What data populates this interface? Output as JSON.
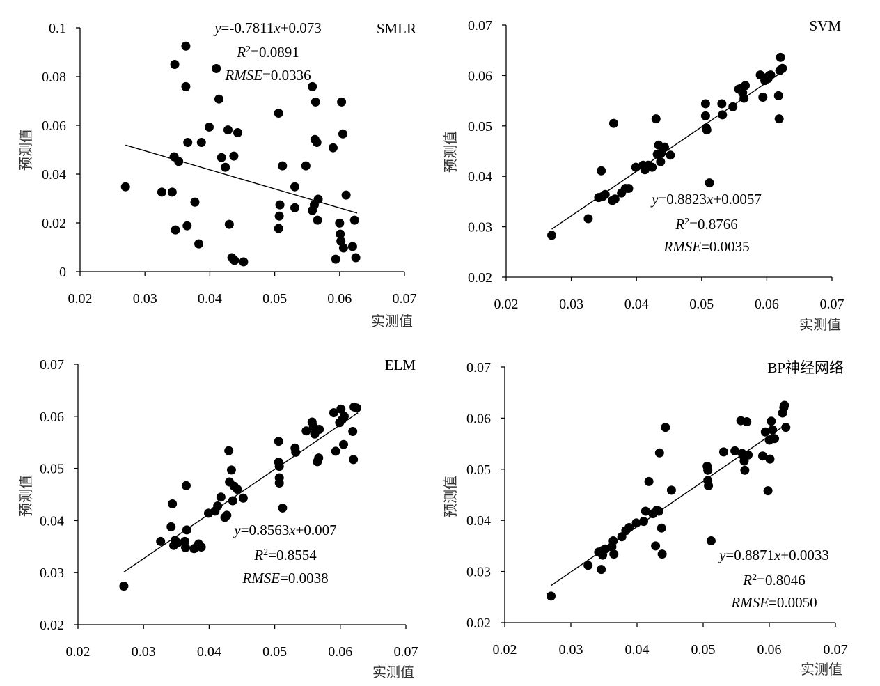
{
  "chart_data": [
    {
      "type": "scatter",
      "title": "SMLR",
      "xlabel": "实测值",
      "ylabel": "预测值",
      "xlim": [
        0.02,
        0.07
      ],
      "ylim": [
        0,
        0.1
      ],
      "xticks": [
        "0.02",
        "0.03",
        "0.04",
        "0.05",
        "0.06",
        "0.07"
      ],
      "yticks": [
        "0",
        "0.02",
        "0.04",
        "0.06",
        "0.08",
        "0.1"
      ],
      "equation": "y =-0.7811x +0.073",
      "r2": "R 2=0.0891",
      "rmse": "RMSE =0.0336",
      "fit": {
        "slope": -0.7811,
        "intercept": 0.073,
        "x_range": [
          0.027,
          0.0627
        ]
      },
      "points": [
        [
          0.027,
          0.0348
        ],
        [
          0.0326,
          0.0326
        ],
        [
          0.0342,
          0.0326
        ],
        [
          0.0345,
          0.0471
        ],
        [
          0.0347,
          0.0171
        ],
        [
          0.0346,
          0.085
        ],
        [
          0.0352,
          0.0452
        ],
        [
          0.0363,
          0.0759
        ],
        [
          0.0363,
          0.0925
        ],
        [
          0.0365,
          0.0188
        ],
        [
          0.0366,
          0.053
        ],
        [
          0.0377,
          0.0285
        ],
        [
          0.0383,
          0.0114
        ],
        [
          0.0387,
          0.053
        ],
        [
          0.0399,
          0.0593
        ],
        [
          0.041,
          0.0833
        ],
        [
          0.0414,
          0.0708
        ],
        [
          0.0418,
          0.0468
        ],
        [
          0.0424,
          0.0428
        ],
        [
          0.0428,
          0.0581
        ],
        [
          0.043,
          0.0194
        ],
        [
          0.0434,
          0.0057
        ],
        [
          0.0437,
          0.0474
        ],
        [
          0.0438,
          0.0046
        ],
        [
          0.0443,
          0.057
        ],
        [
          0.0452,
          0.004
        ],
        [
          0.0506,
          0.065
        ],
        [
          0.0506,
          0.0177
        ],
        [
          0.0507,
          0.0228
        ],
        [
          0.0508,
          0.0274
        ],
        [
          0.0512,
          0.0434
        ],
        [
          0.0531,
          0.0348
        ],
        [
          0.0531,
          0.0262
        ],
        [
          0.0548,
          0.0434
        ],
        [
          0.0558,
          0.0759
        ],
        [
          0.0558,
          0.0251
        ],
        [
          0.0561,
          0.0274
        ],
        [
          0.0562,
          0.0542
        ],
        [
          0.0563,
          0.0696
        ],
        [
          0.0565,
          0.053
        ],
        [
          0.0566,
          0.0211
        ],
        [
          0.0567,
          0.0297
        ],
        [
          0.059,
          0.0508
        ],
        [
          0.0594,
          0.0051
        ],
        [
          0.06,
          0.0199
        ],
        [
          0.0601,
          0.0154
        ],
        [
          0.0602,
          0.0125
        ],
        [
          0.0603,
          0.0696
        ],
        [
          0.0605,
          0.0565
        ],
        [
          0.0606,
          0.0097
        ],
        [
          0.061,
          0.0314
        ],
        [
          0.062,
          0.0103
        ],
        [
          0.0623,
          0.0211
        ],
        [
          0.0625,
          0.0057
        ]
      ]
    },
    {
      "type": "scatter",
      "title": "SVM",
      "xlabel": "实测值",
      "ylabel": "预测值",
      "xlim": [
        0.02,
        0.07
      ],
      "ylim": [
        0.02,
        0.07
      ],
      "xticks": [
        "0.02",
        "0.03",
        "0.04",
        "0.05",
        "0.06",
        "0.07"
      ],
      "yticks": [
        "0.02",
        "0.03",
        "0.04",
        "0.05",
        "0.06",
        "0.07"
      ],
      "equation": "y =0.8823x +0.0057",
      "r2": "R 2=0.8766",
      "rmse": "RMSE =0.0035",
      "fit": {
        "slope": 0.8823,
        "intercept": 0.0057,
        "x_range": [
          0.027,
          0.0627
        ]
      },
      "points": [
        [
          0.027,
          0.0283
        ],
        [
          0.0326,
          0.0316
        ],
        [
          0.0342,
          0.0358
        ],
        [
          0.0346,
          0.0411
        ],
        [
          0.0348,
          0.036
        ],
        [
          0.0352,
          0.0364
        ],
        [
          0.0363,
          0.0352
        ],
        [
          0.0365,
          0.0505
        ],
        [
          0.0367,
          0.0355
        ],
        [
          0.0377,
          0.0367
        ],
        [
          0.0383,
          0.0376
        ],
        [
          0.0388,
          0.0376
        ],
        [
          0.0399,
          0.0418
        ],
        [
          0.041,
          0.0422
        ],
        [
          0.0413,
          0.0413
        ],
        [
          0.0418,
          0.0422
        ],
        [
          0.0424,
          0.0418
        ],
        [
          0.043,
          0.0514
        ],
        [
          0.0432,
          0.0444
        ],
        [
          0.0434,
          0.0462
        ],
        [
          0.0437,
          0.0429
        ],
        [
          0.0438,
          0.0446
        ],
        [
          0.0443,
          0.0458
        ],
        [
          0.0452,
          0.0442
        ],
        [
          0.0506,
          0.0544
        ],
        [
          0.0506,
          0.052
        ],
        [
          0.0507,
          0.0496
        ],
        [
          0.0508,
          0.0492
        ],
        [
          0.0512,
          0.0387
        ],
        [
          0.0531,
          0.0544
        ],
        [
          0.0532,
          0.0522
        ],
        [
          0.0548,
          0.0538
        ],
        [
          0.0557,
          0.0573
        ],
        [
          0.0561,
          0.0575
        ],
        [
          0.0563,
          0.0566
        ],
        [
          0.0565,
          0.0555
        ],
        [
          0.0567,
          0.058
        ],
        [
          0.059,
          0.0601
        ],
        [
          0.0594,
          0.0557
        ],
        [
          0.0597,
          0.059
        ],
        [
          0.06,
          0.0596
        ],
        [
          0.0602,
          0.0594
        ],
        [
          0.0604,
          0.06
        ],
        [
          0.0606,
          0.0601
        ],
        [
          0.0618,
          0.056
        ],
        [
          0.0619,
          0.0514
        ],
        [
          0.062,
          0.061
        ],
        [
          0.0621,
          0.0636
        ],
        [
          0.0624,
          0.0614
        ]
      ]
    },
    {
      "type": "scatter",
      "title": "ELM",
      "xlabel": "实测值",
      "ylabel": "预测值",
      "xlim": [
        0.02,
        0.07
      ],
      "ylim": [
        0.02,
        0.07
      ],
      "xticks": [
        "0.02",
        "0.03",
        "0.04",
        "0.05",
        "0.06",
        "0.07"
      ],
      "yticks": [
        "0.02",
        "0.03",
        "0.04",
        "0.05",
        "0.06",
        "0.07"
      ],
      "equation": "y =0.8563x +0.007",
      "r2": "R 2=0.8554",
      "rmse": "RMSE =0.0038",
      "fit": {
        "slope": 0.8563,
        "intercept": 0.007,
        "x_range": [
          0.027,
          0.0627
        ]
      },
      "points": [
        [
          0.027,
          0.0274
        ],
        [
          0.0326,
          0.036
        ],
        [
          0.0342,
          0.0388
        ],
        [
          0.0344,
          0.0432
        ],
        [
          0.0346,
          0.0352
        ],
        [
          0.0348,
          0.0362
        ],
        [
          0.0352,
          0.0357
        ],
        [
          0.0363,
          0.036
        ],
        [
          0.0364,
          0.0348
        ],
        [
          0.0365,
          0.0467
        ],
        [
          0.0366,
          0.0382
        ],
        [
          0.0377,
          0.0346
        ],
        [
          0.0384,
          0.0355
        ],
        [
          0.0388,
          0.0349
        ],
        [
          0.0399,
          0.0414
        ],
        [
          0.0409,
          0.0418
        ],
        [
          0.0413,
          0.0428
        ],
        [
          0.0418,
          0.0445
        ],
        [
          0.0424,
          0.0406
        ],
        [
          0.0427,
          0.041
        ],
        [
          0.043,
          0.0534
        ],
        [
          0.0431,
          0.0474
        ],
        [
          0.0434,
          0.0497
        ],
        [
          0.0436,
          0.0438
        ],
        [
          0.0438,
          0.0466
        ],
        [
          0.0443,
          0.046
        ],
        [
          0.0452,
          0.0443
        ],
        [
          0.0506,
          0.0552
        ],
        [
          0.0506,
          0.0512
        ],
        [
          0.0507,
          0.0504
        ],
        [
          0.0507,
          0.0482
        ],
        [
          0.0507,
          0.0472
        ],
        [
          0.0512,
          0.0424
        ],
        [
          0.0531,
          0.0539
        ],
        [
          0.0532,
          0.0531
        ],
        [
          0.0548,
          0.0572
        ],
        [
          0.0557,
          0.0589
        ],
        [
          0.0559,
          0.058
        ],
        [
          0.0561,
          0.0566
        ],
        [
          0.0563,
          0.0572
        ],
        [
          0.0565,
          0.0513
        ],
        [
          0.0567,
          0.052
        ],
        [
          0.0568,
          0.0575
        ],
        [
          0.059,
          0.0607
        ],
        [
          0.0593,
          0.0533
        ],
        [
          0.0599,
          0.0588
        ],
        [
          0.0601,
          0.0614
        ],
        [
          0.0603,
          0.0594
        ],
        [
          0.0605,
          0.0546
        ],
        [
          0.0606,
          0.06
        ],
        [
          0.0619,
          0.0571
        ],
        [
          0.062,
          0.0517
        ],
        [
          0.0621,
          0.0618
        ],
        [
          0.0625,
          0.0616
        ]
      ]
    },
    {
      "type": "scatter",
      "title": "BP神经网络",
      "xlabel": "实测值",
      "ylabel": "预测值",
      "xlim": [
        0.02,
        0.07
      ],
      "ylim": [
        0.02,
        0.07
      ],
      "xticks": [
        "0.02",
        "0.03",
        "0.04",
        "0.05",
        "0.06",
        "0.07"
      ],
      "yticks": [
        "0.02",
        "0.03",
        "0.04",
        "0.05",
        "0.06",
        "0.07"
      ],
      "equation": "y =0.8871x +0.0033",
      "r2": "R 2=0.8046",
      "rmse": "RMSE =0.0050",
      "fit": {
        "slope": 0.8871,
        "intercept": 0.0033,
        "x_range": [
          0.027,
          0.0627
        ]
      },
      "points": [
        [
          0.027,
          0.0252
        ],
        [
          0.0326,
          0.0312
        ],
        [
          0.0342,
          0.0338
        ],
        [
          0.0346,
          0.0304
        ],
        [
          0.0348,
          0.0341
        ],
        [
          0.0348,
          0.0332
        ],
        [
          0.0352,
          0.0344
        ],
        [
          0.0362,
          0.0348
        ],
        [
          0.0364,
          0.036
        ],
        [
          0.0365,
          0.0334
        ],
        [
          0.0377,
          0.0368
        ],
        [
          0.0383,
          0.038
        ],
        [
          0.0388,
          0.0386
        ],
        [
          0.0399,
          0.0395
        ],
        [
          0.041,
          0.0398
        ],
        [
          0.0413,
          0.0418
        ],
        [
          0.0418,
          0.0476
        ],
        [
          0.0424,
          0.0413
        ],
        [
          0.0428,
          0.035
        ],
        [
          0.043,
          0.042
        ],
        [
          0.0433,
          0.0418
        ],
        [
          0.0434,
          0.0532
        ],
        [
          0.0437,
          0.0385
        ],
        [
          0.0438,
          0.0334
        ],
        [
          0.0443,
          0.0582
        ],
        [
          0.0452,
          0.0459
        ],
        [
          0.0506,
          0.0506
        ],
        [
          0.0507,
          0.0498
        ],
        [
          0.0507,
          0.0478
        ],
        [
          0.0508,
          0.0468
        ],
        [
          0.0512,
          0.036
        ],
        [
          0.0531,
          0.0534
        ],
        [
          0.0548,
          0.0536
        ],
        [
          0.0557,
          0.0595
        ],
        [
          0.0559,
          0.0531
        ],
        [
          0.0561,
          0.0526
        ],
        [
          0.0562,
          0.0516
        ],
        [
          0.0563,
          0.0498
        ],
        [
          0.0566,
          0.0593
        ],
        [
          0.0568,
          0.0528
        ],
        [
          0.059,
          0.0526
        ],
        [
          0.0594,
          0.0573
        ],
        [
          0.0598,
          0.0458
        ],
        [
          0.06,
          0.0557
        ],
        [
          0.0601,
          0.052
        ],
        [
          0.0603,
          0.0594
        ],
        [
          0.0605,
          0.0577
        ],
        [
          0.0608,
          0.056
        ],
        [
          0.062,
          0.061
        ],
        [
          0.0622,
          0.0621
        ],
        [
          0.0623,
          0.0625
        ],
        [
          0.0625,
          0.0582
        ]
      ]
    }
  ]
}
